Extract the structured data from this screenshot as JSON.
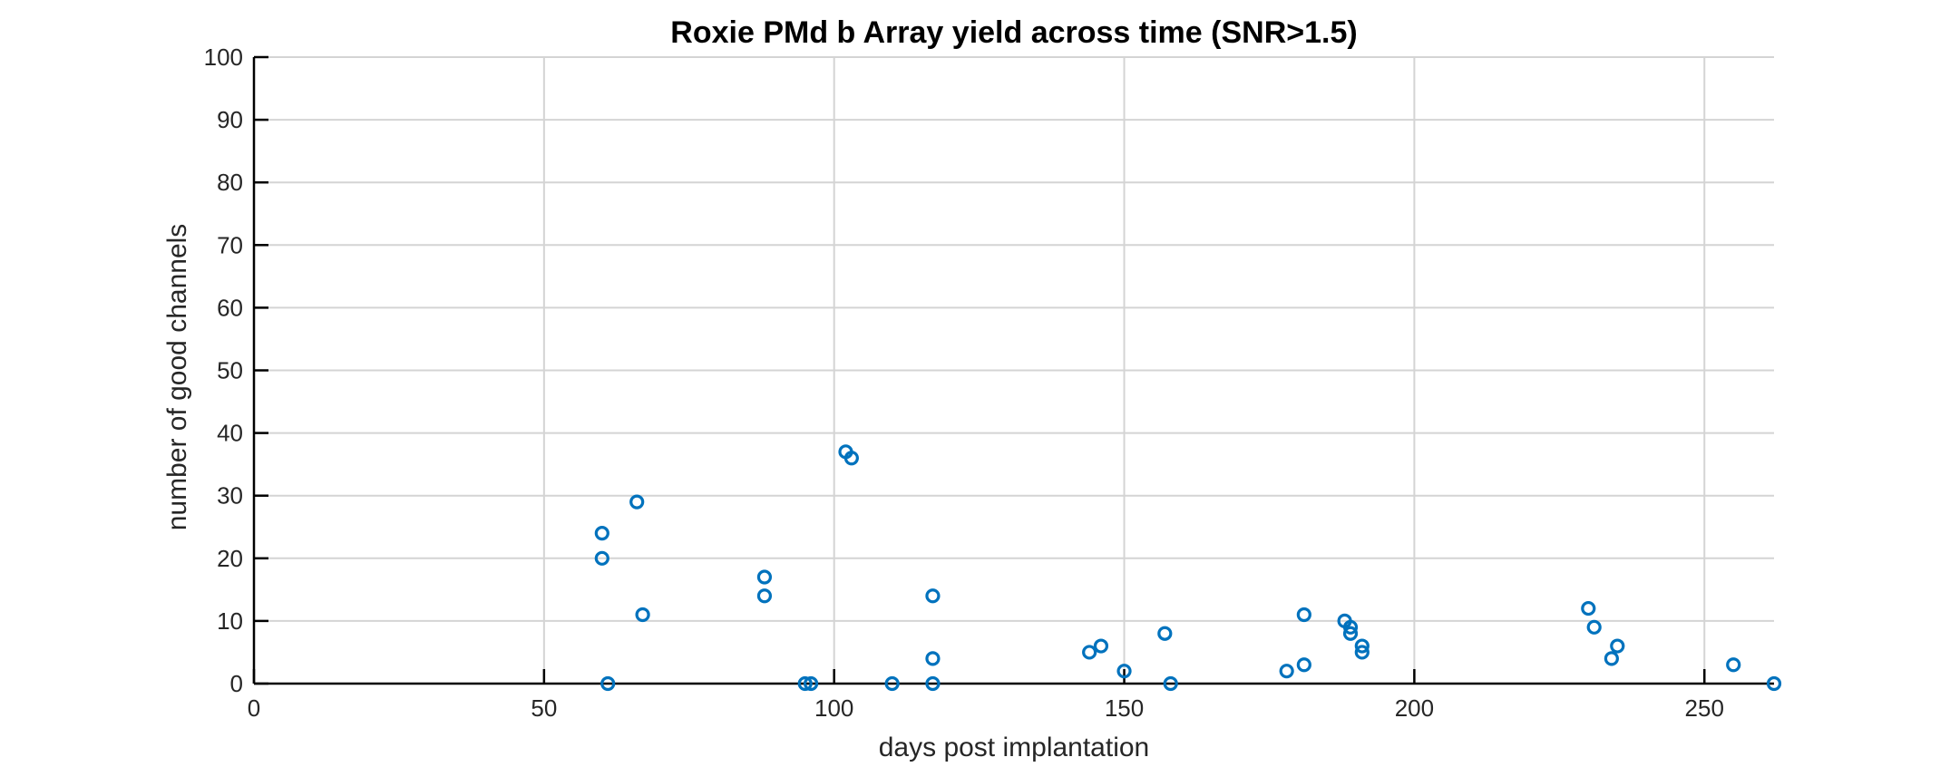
{
  "chart_data": {
    "type": "scatter",
    "title": "Roxie PMd b Array yield across time (SNR>1.5)",
    "xlabel": "days post implantation",
    "ylabel": "number of good channels",
    "xlim": [
      0,
      262
    ],
    "ylim": [
      0,
      100
    ],
    "xticks": [
      0,
      50,
      100,
      150,
      200,
      250
    ],
    "yticks": [
      0,
      10,
      20,
      30,
      40,
      50,
      60,
      70,
      80,
      90,
      100
    ],
    "grid": true,
    "marker": "circle",
    "color": "#0072BD",
    "x": [
      60,
      60,
      61,
      66,
      67,
      88,
      88,
      95,
      96,
      102,
      103,
      110,
      117,
      117,
      117,
      144,
      146,
      150,
      157,
      158,
      178,
      181,
      181,
      188,
      189,
      189,
      191,
      191,
      230,
      231,
      234,
      235,
      255,
      262
    ],
    "y": [
      24,
      20,
      0,
      29,
      11,
      17,
      14,
      0,
      0,
      37,
      36,
      0,
      14,
      4,
      0,
      5,
      6,
      2,
      8,
      0,
      2,
      3,
      11,
      10,
      9,
      8,
      6,
      5,
      12,
      9,
      4,
      6,
      3,
      0
    ]
  }
}
